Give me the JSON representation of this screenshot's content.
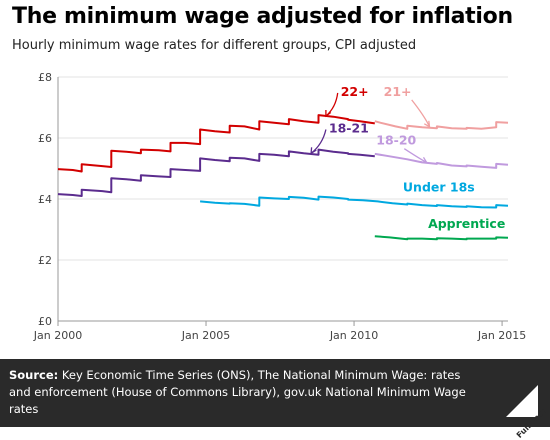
{
  "header": {
    "title": "The minimum wage adjusted for inflation",
    "subtitle": "Hourly minimum wage rates for different groups, CPI adjusted"
  },
  "footer": {
    "source_label": "Source:",
    "source_text": " Key Economic Time Series (ONS), The National Minimum Wage: rates and enforcement (House of Commons Library), gov.uk National Minimum Wage rates",
    "logo_text": "Full Fact"
  },
  "colors": {
    "axis": "#999999",
    "grid": "#e3e3e3",
    "tick_text": "#444444"
  },
  "chart_data": {
    "type": "line",
    "title": "The minimum wage adjusted for inflation",
    "subtitle": "Hourly minimum wage rates for different groups, CPI adjusted",
    "xlabel": "",
    "ylabel": "",
    "xlim": [
      2000.0,
      2015.2
    ],
    "ylim": [
      0,
      8
    ],
    "grid": true,
    "legend": "direct-labels",
    "y_ticks": [
      {
        "value": 0,
        "label": "£0"
      },
      {
        "value": 2,
        "label": "£2"
      },
      {
        "value": 4,
        "label": "£4"
      },
      {
        "value": 6,
        "label": "£6"
      },
      {
        "value": 8,
        "label": "£8"
      }
    ],
    "x_ticks": [
      {
        "value": 2000,
        "label": "Jan 2000"
      },
      {
        "value": 2005,
        "label": "Jan 2005"
      },
      {
        "value": 2010,
        "label": "Jan 2010"
      },
      {
        "value": 2015,
        "label": "Jan 2015"
      }
    ],
    "series": [
      {
        "name": "22+",
        "color": "#d20000",
        "points": [
          [
            2000.0,
            4.98
          ],
          [
            2000.5,
            4.95
          ],
          [
            2000.8,
            4.9
          ],
          [
            2000.8,
            5.14
          ],
          [
            2001.5,
            5.08
          ],
          [
            2001.8,
            5.05
          ],
          [
            2001.8,
            5.58
          ],
          [
            2002.4,
            5.54
          ],
          [
            2002.8,
            5.5
          ],
          [
            2002.8,
            5.62
          ],
          [
            2003.4,
            5.6
          ],
          [
            2003.8,
            5.56
          ],
          [
            2003.8,
            5.84
          ],
          [
            2004.3,
            5.84
          ],
          [
            2004.8,
            5.8
          ],
          [
            2004.8,
            6.28
          ],
          [
            2005.3,
            6.22
          ],
          [
            2005.8,
            6.18
          ],
          [
            2005.8,
            6.4
          ],
          [
            2006.3,
            6.38
          ],
          [
            2006.8,
            6.28
          ],
          [
            2006.8,
            6.55
          ],
          [
            2007.3,
            6.5
          ],
          [
            2007.8,
            6.45
          ],
          [
            2007.8,
            6.62
          ],
          [
            2008.3,
            6.55
          ],
          [
            2008.8,
            6.5
          ],
          [
            2008.8,
            6.75
          ],
          [
            2009.3,
            6.7
          ],
          [
            2009.8,
            6.62
          ],
          [
            2009.8,
            6.6
          ],
          [
            2010.2,
            6.55
          ],
          [
            2010.7,
            6.48
          ]
        ]
      },
      {
        "name": "21+",
        "color": "#f0a0a0",
        "points": [
          [
            2010.7,
            6.55
          ],
          [
            2010.9,
            6.5
          ],
          [
            2011.4,
            6.38
          ],
          [
            2011.8,
            6.3
          ],
          [
            2011.8,
            6.4
          ],
          [
            2012.3,
            6.35
          ],
          [
            2012.8,
            6.32
          ],
          [
            2012.8,
            6.38
          ],
          [
            2013.3,
            6.32
          ],
          [
            2013.8,
            6.3
          ],
          [
            2013.8,
            6.33
          ],
          [
            2014.3,
            6.3
          ],
          [
            2014.8,
            6.35
          ],
          [
            2014.8,
            6.52
          ],
          [
            2015.2,
            6.5
          ]
        ]
      },
      {
        "name": "18-21",
        "color": "#5b2c8e",
        "points": [
          [
            2000.0,
            4.16
          ],
          [
            2000.5,
            4.13
          ],
          [
            2000.8,
            4.1
          ],
          [
            2000.8,
            4.3
          ],
          [
            2001.5,
            4.26
          ],
          [
            2001.8,
            4.22
          ],
          [
            2001.8,
            4.68
          ],
          [
            2002.4,
            4.64
          ],
          [
            2002.8,
            4.6
          ],
          [
            2002.8,
            4.78
          ],
          [
            2003.4,
            4.74
          ],
          [
            2003.8,
            4.72
          ],
          [
            2003.8,
            4.98
          ],
          [
            2004.3,
            4.95
          ],
          [
            2004.8,
            4.92
          ],
          [
            2004.8,
            5.33
          ],
          [
            2005.3,
            5.28
          ],
          [
            2005.8,
            5.24
          ],
          [
            2005.8,
            5.35
          ],
          [
            2006.3,
            5.33
          ],
          [
            2006.8,
            5.25
          ],
          [
            2006.8,
            5.48
          ],
          [
            2007.3,
            5.45
          ],
          [
            2007.8,
            5.4
          ],
          [
            2007.8,
            5.56
          ],
          [
            2008.3,
            5.5
          ],
          [
            2008.8,
            5.45
          ],
          [
            2008.8,
            5.62
          ],
          [
            2009.3,
            5.55
          ],
          [
            2009.8,
            5.5
          ],
          [
            2009.8,
            5.48
          ],
          [
            2010.2,
            5.45
          ],
          [
            2010.7,
            5.4
          ]
        ]
      },
      {
        "name": "18-20",
        "color": "#c09ade",
        "points": [
          [
            2010.7,
            5.48
          ],
          [
            2011.2,
            5.4
          ],
          [
            2011.8,
            5.3
          ],
          [
            2011.8,
            5.3
          ],
          [
            2012.3,
            5.2
          ],
          [
            2012.8,
            5.15
          ],
          [
            2012.8,
            5.18
          ],
          [
            2013.3,
            5.1
          ],
          [
            2013.8,
            5.07
          ],
          [
            2013.8,
            5.1
          ],
          [
            2014.3,
            5.06
          ],
          [
            2014.8,
            5.02
          ],
          [
            2014.8,
            5.15
          ],
          [
            2015.2,
            5.12
          ]
        ]
      },
      {
        "name": "Under 18s",
        "color": "#00a8e0",
        "points": [
          [
            2004.8,
            3.92
          ],
          [
            2005.3,
            3.88
          ],
          [
            2005.8,
            3.85
          ],
          [
            2005.8,
            3.86
          ],
          [
            2006.3,
            3.84
          ],
          [
            2006.8,
            3.78
          ],
          [
            2006.8,
            4.05
          ],
          [
            2007.3,
            4.02
          ],
          [
            2007.8,
            4.0
          ],
          [
            2007.8,
            4.07
          ],
          [
            2008.3,
            4.04
          ],
          [
            2008.8,
            3.98
          ],
          [
            2008.8,
            4.08
          ],
          [
            2009.3,
            4.05
          ],
          [
            2009.8,
            4.0
          ],
          [
            2009.8,
            3.98
          ],
          [
            2010.3,
            3.96
          ],
          [
            2010.8,
            3.92
          ],
          [
            2010.8,
            3.92
          ],
          [
            2011.3,
            3.86
          ],
          [
            2011.8,
            3.82
          ],
          [
            2011.8,
            3.85
          ],
          [
            2012.3,
            3.8
          ],
          [
            2012.8,
            3.77
          ],
          [
            2012.8,
            3.8
          ],
          [
            2013.3,
            3.76
          ],
          [
            2013.8,
            3.74
          ],
          [
            2013.8,
            3.76
          ],
          [
            2014.3,
            3.73
          ],
          [
            2014.8,
            3.72
          ],
          [
            2014.8,
            3.8
          ],
          [
            2015.2,
            3.78
          ]
        ]
      },
      {
        "name": "Apprentice",
        "color": "#00a850",
        "points": [
          [
            2010.7,
            2.78
          ],
          [
            2011.2,
            2.74
          ],
          [
            2011.8,
            2.68
          ],
          [
            2011.8,
            2.7
          ],
          [
            2012.3,
            2.7
          ],
          [
            2012.8,
            2.68
          ],
          [
            2012.8,
            2.71
          ],
          [
            2013.3,
            2.7
          ],
          [
            2013.8,
            2.68
          ],
          [
            2013.8,
            2.7
          ],
          [
            2014.3,
            2.7
          ],
          [
            2014.8,
            2.7
          ],
          [
            2014.8,
            2.74
          ],
          [
            2015.2,
            2.73
          ]
        ]
      }
    ],
    "labels": [
      {
        "text": "22+",
        "color": "#d20000",
        "x": 2009.55,
        "y": 7.38,
        "arrow_to": [
          2009.05,
          6.72
        ],
        "anchor": "start"
      },
      {
        "text": "21+",
        "color": "#f0a0a0",
        "x": 2011.0,
        "y": 7.38,
        "arrow_to": [
          2012.55,
          6.37
        ],
        "anchor": "start"
      },
      {
        "text": "18-21",
        "color": "#5b2c8e",
        "x": 2009.15,
        "y": 6.18,
        "arrow_to": [
          2008.55,
          5.5
        ],
        "anchor": "start"
      },
      {
        "text": "18-20",
        "color": "#c09ade",
        "x": 2010.75,
        "y": 5.78,
        "arrow_to": [
          2012.45,
          5.2
        ],
        "anchor": "start"
      },
      {
        "text": "Under 18s",
        "color": "#00a8e0",
        "x": 2011.65,
        "y": 4.25,
        "anchor": "start"
      },
      {
        "text": "Apprentice",
        "color": "#00a850",
        "x": 2012.5,
        "y": 3.05,
        "anchor": "start"
      }
    ]
  }
}
